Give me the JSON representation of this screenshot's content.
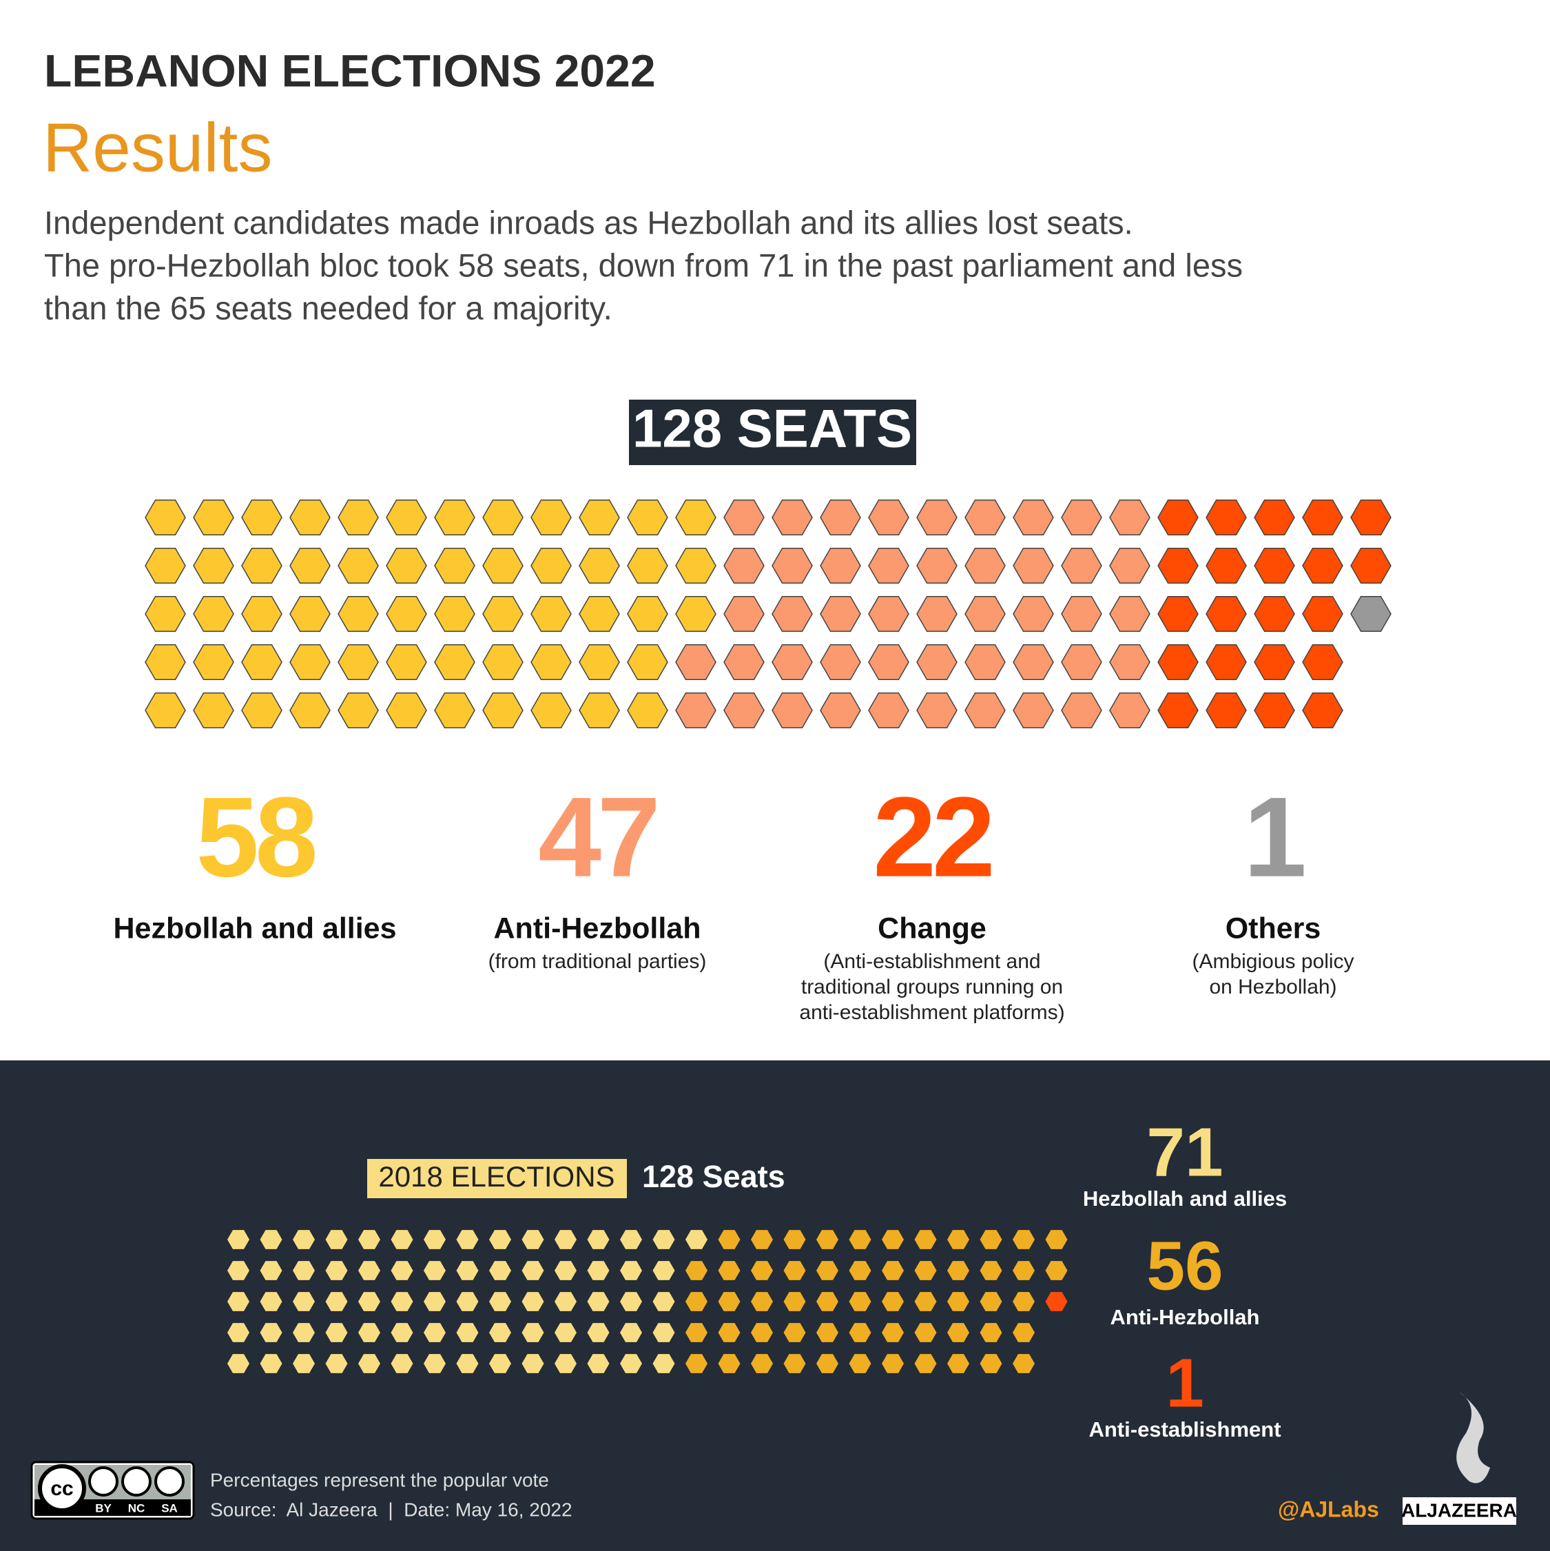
{
  "title": "LEBANON ELECTIONS 2022",
  "subtitle": "Results",
  "description": [
    "Independent candidates made inroads as Hezbollah and its allies lost seats.",
    "The pro-Hezbollah bloc took 58 seats, down from 71 in the past parliament and less",
    "than the 65 seats needed for a majority."
  ],
  "chart_data": [
    {
      "type": "waffle",
      "title": "128 SEATS",
      "categories": [
        "Hezbollah and allies",
        "Anti-Hezbollah",
        "Change",
        "Others"
      ],
      "notes": [
        null,
        [
          "(from traditional parties)"
        ],
        [
          "(Anti-establishment and",
          "traditional groups running on",
          "anti-establishment platforms)"
        ],
        [
          "(Ambigious policy",
          "on Hezbollah)"
        ]
      ],
      "values": [
        58,
        47,
        22,
        1
      ],
      "colors": [
        "#fdc82f",
        "#fb9a6e",
        "#ff4c00",
        "#999999"
      ]
    },
    {
      "type": "waffle",
      "title": "2018 ELECTIONS",
      "subtitle": "128 Seats",
      "categories": [
        "Hezbollah and allies",
        "Anti-Hezbollah",
        "Anti-establishment"
      ],
      "values": [
        71,
        56,
        1
      ],
      "colors": [
        "#f8dd82",
        "#f0ae22",
        "#ff4c0a"
      ]
    }
  ],
  "footer": {
    "license": [
      "cc",
      "BY",
      "NC",
      "SA"
    ],
    "note": "Percentages represent the popular vote",
    "source": "Source:  Al Jazeera  |  Date: May 16, 2022",
    "handle": "@AJLabs",
    "brand": "ALJAZEERA"
  }
}
